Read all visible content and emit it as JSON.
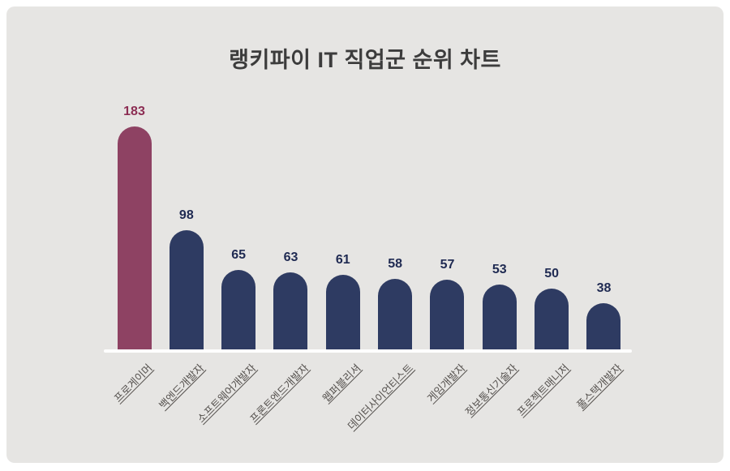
{
  "title": "랭키파이 IT 직업군 순위 차트",
  "colors": {
    "page_background": "#ffffff",
    "card_background": "#e6e5e3",
    "title_text": "#3c3c3c",
    "axis_line": "#ffffff",
    "bar_highlight": "#8e4263",
    "bar_default": "#2e3b62",
    "value_highlight": "#8c2d53",
    "value_default": "#1f2a52",
    "category_text": "#56524f"
  },
  "chart_data": {
    "type": "bar",
    "title": "랭키파이 IT 직업군 순위 차트",
    "categories": [
      "프로게이머",
      "백엔드개발자",
      "소프트웨어개발자",
      "프론트엔드개발자",
      "웹퍼블리셔",
      "데이터사이언티스트",
      "게임개발자",
      "정보통신기술자",
      "프로젝트매니저",
      "풀스택개발자"
    ],
    "values": [
      183,
      98,
      65,
      63,
      61,
      58,
      57,
      53,
      50,
      38
    ],
    "highlight_index": 0,
    "xlabel": "",
    "ylabel": "",
    "ylim": [
      0,
      200
    ],
    "grid": false,
    "y_axis_visible": false,
    "legend": "none",
    "value_labels_shown": true,
    "category_label_rotation_deg": 45
  }
}
